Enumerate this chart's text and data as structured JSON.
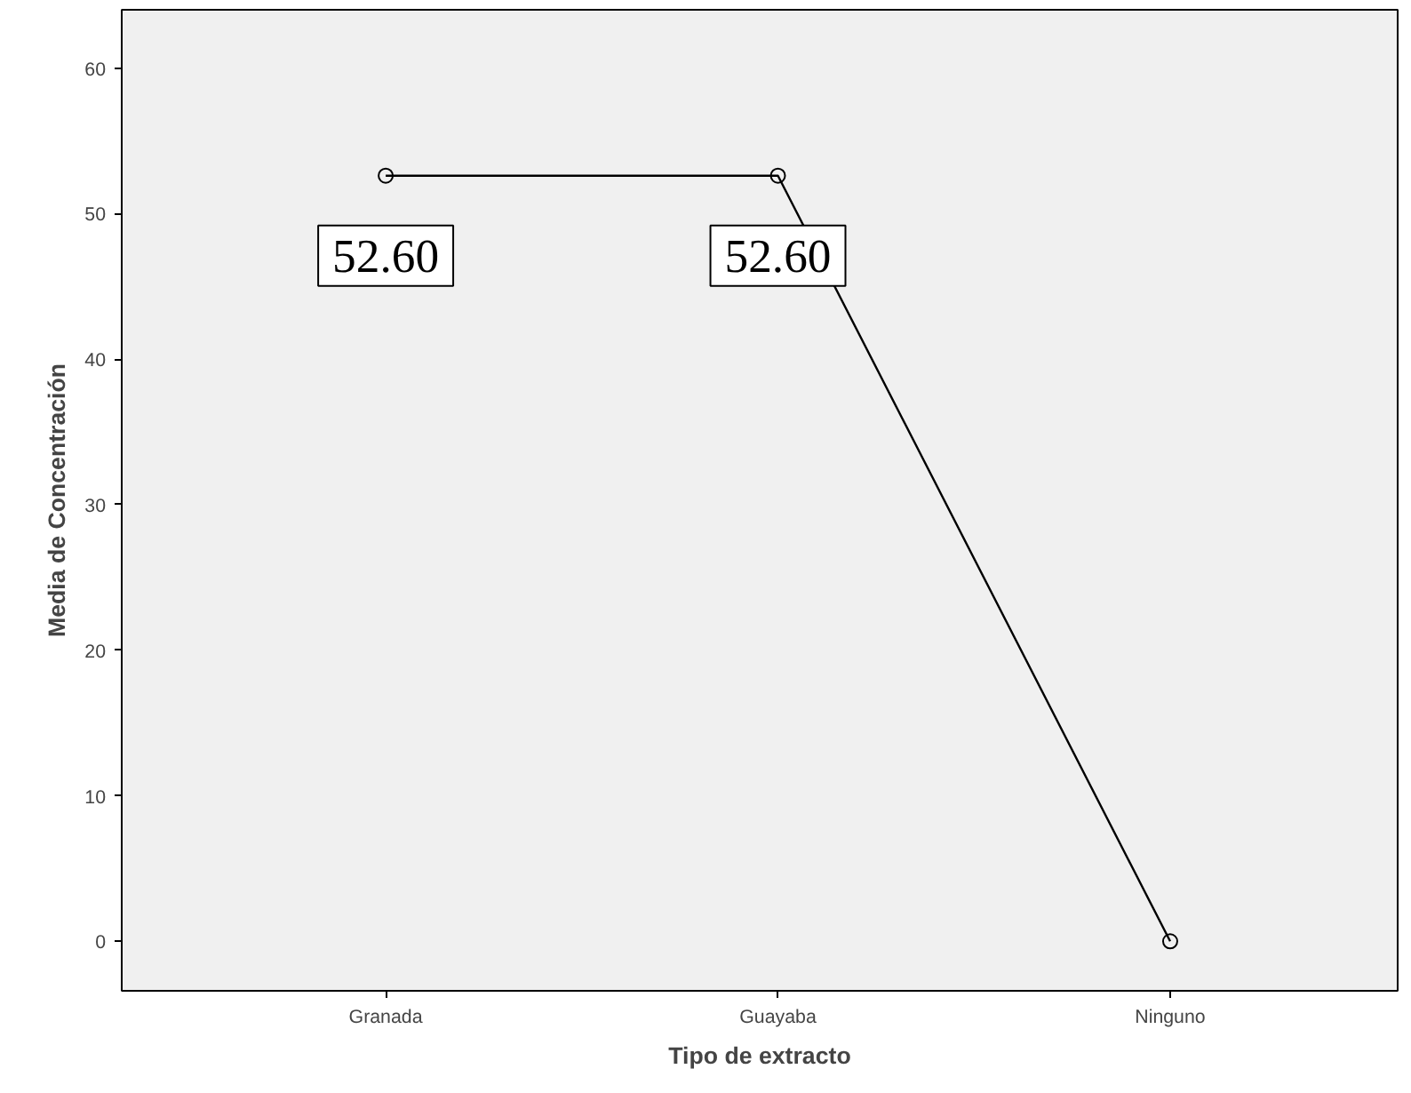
{
  "chart_data": {
    "type": "line",
    "xlabel": "Tipo de extracto",
    "ylabel": "Media de Concentración",
    "categories": [
      "Granada",
      "Guayaba",
      "Ninguno"
    ],
    "values": [
      52.6,
      52.6,
      0
    ],
    "value_labels": [
      "52.60",
      "52.60",
      null
    ],
    "color": "#000000",
    "ylim": [
      -3.4,
      64
    ],
    "yticks": [
      0,
      10,
      20,
      30,
      40,
      50,
      60
    ],
    "marker": "circle",
    "grid": false
  }
}
